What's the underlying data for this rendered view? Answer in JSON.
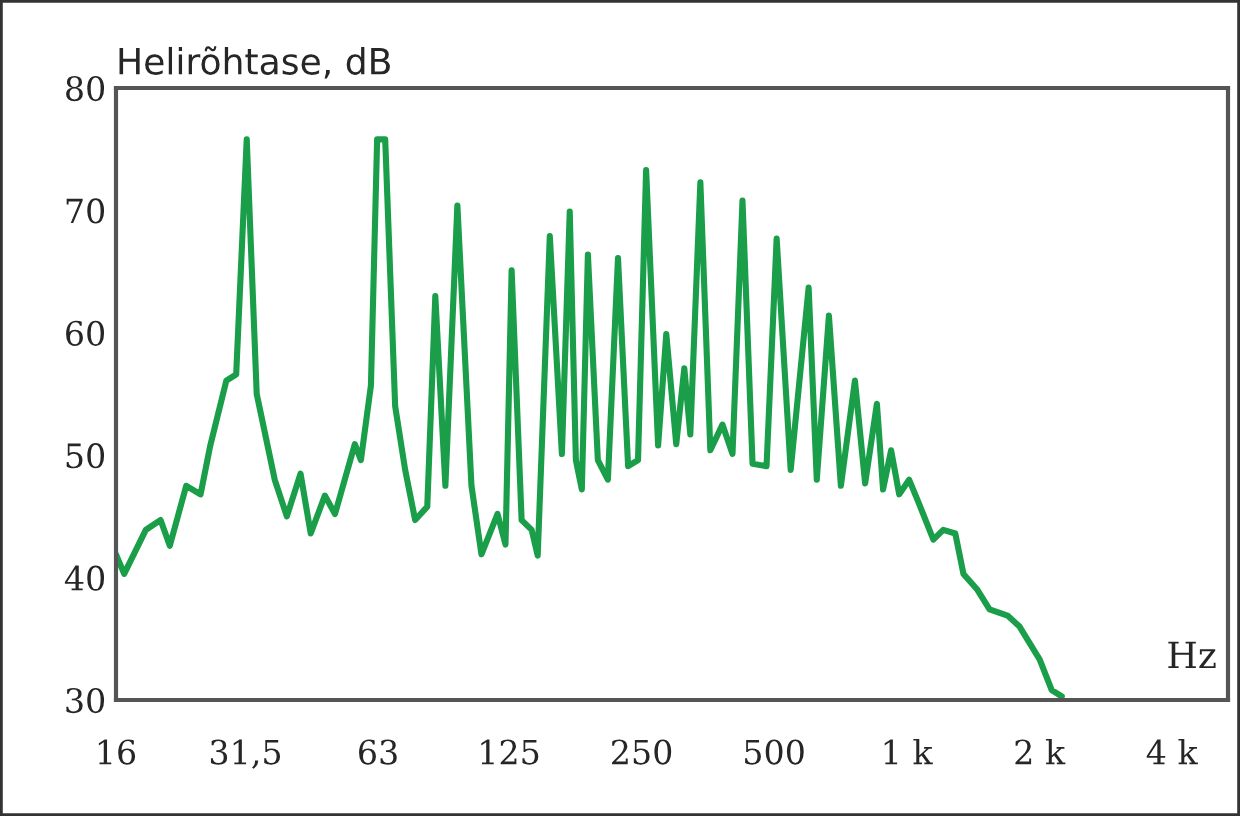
{
  "chart_data": {
    "type": "line",
    "ylabel": "Helirõhtase, dB",
    "xlabel": "Hz",
    "log": "x",
    "grid": false,
    "marker": "none",
    "line_style": "solid",
    "xlim": [
      16,
      5370
    ],
    "ylim": [
      30,
      80
    ],
    "xticks": [
      16,
      {
        "value": 31.5,
        "label": "31,5"
      },
      63,
      125,
      250,
      500,
      {
        "value": 1000,
        "label": "1 k"
      },
      {
        "value": 2000,
        "label": "2 k"
      },
      {
        "value": 4000,
        "label": "4 k"
      }
    ],
    "yticks": [
      30,
      40,
      50,
      60,
      70,
      80
    ],
    "series": [
      {
        "color": "#1a9e4a",
        "x": [
          16,
          16.7,
          18.7,
          20.2,
          21.2,
          23.1,
          24.9,
          26.2,
          28.5,
          30.0,
          31.7,
          33.4,
          36.7,
          39.1,
          42.0,
          44.3,
          47.7,
          50.3,
          55.8,
          57.6,
          60.7,
          62.7,
          65.4,
          68.9,
          72.6,
          76.5,
          81.5,
          85.0,
          89.6,
          95.4,
          102.7,
          108.2,
          117.7,
          122.7,
          126.7,
          133.5,
          140.7,
          145.2,
          154.7,
          164.8,
          171.7,
          177.3,
          182.9,
          188.8,
          198.9,
          209.6,
          221.0,
          233.0,
          245.4,
          256,
          272.6,
          284.5,
          299.7,
          312.6,
          322.6,
          340,
          358.2,
          381.6,
          402.2,
          423.8,
          446.7,
          480.6,
          506.7,
          545.3,
          599,
          625,
          666,
          709,
          763,
          805,
          856,
          884,
          922,
          962,
          1013,
          1068,
          1150,
          1211,
          1290,
          1346,
          1448,
          1543,
          1695,
          1805,
          2006,
          2136,
          2251
        ],
        "values": [
          41.9,
          40.3,
          43.9,
          44.7,
          42.6,
          47.5,
          46.8,
          50.8,
          56.1,
          56.6,
          75.8,
          55,
          48,
          45,
          48.5,
          43.6,
          46.7,
          45.2,
          50.9,
          49.6,
          55.7,
          75.8,
          75.8,
          54,
          48.8,
          44.7,
          45.8,
          63,
          47.5,
          70.4,
          47.5,
          41.9,
          45.2,
          42.7,
          65.1,
          44.7,
          43.9,
          41.8,
          67.9,
          50.1,
          69.9,
          49.6,
          47.2,
          66.4,
          49.6,
          48,
          66.1,
          49.1,
          49.6,
          73.3,
          50.8,
          59.9,
          50.9,
          57.1,
          51.7,
          72.3,
          50.4,
          52.5,
          50.1,
          70.8,
          49.3,
          49.1,
          67.7,
          48.8,
          63.7,
          48,
          61.4,
          47.5,
          56.1,
          47.7,
          54.2,
          47.2,
          50.4,
          46.8,
          48,
          46,
          43.1,
          43.9,
          43.6,
          40.3,
          39,
          37.4,
          36.9,
          36,
          33.3,
          30.8,
          30.3
        ]
      }
    ]
  }
}
